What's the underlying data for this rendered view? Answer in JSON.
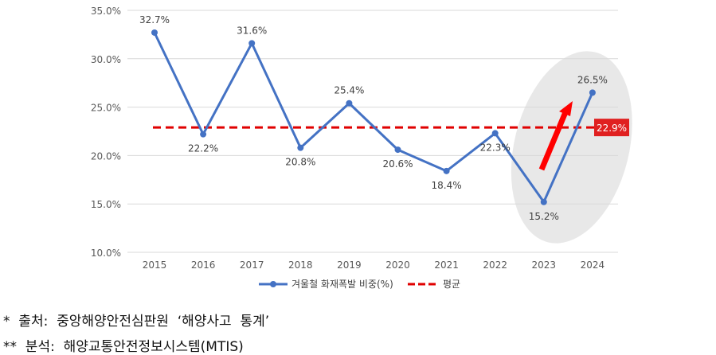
{
  "chart_data": {
    "type": "line",
    "categories": [
      "2015",
      "2016",
      "2017",
      "2018",
      "2019",
      "2020",
      "2021",
      "2022",
      "2023",
      "2024"
    ],
    "series": [
      {
        "name": "겨울철 화재폭발 비중(%)",
        "values": [
          32.7,
          22.2,
          31.6,
          20.8,
          25.4,
          20.6,
          18.4,
          22.3,
          15.2,
          26.5
        ],
        "labels": [
          "32.7%",
          "22.2%",
          "31.6%",
          "20.8%",
          "25.4%",
          "20.6%",
          "18.4%",
          "22.3%",
          "15.2%",
          "26.5%"
        ],
        "color": "#4472C4"
      },
      {
        "name": "평균",
        "value": 22.9,
        "label": "22.9%",
        "color": "#E00000",
        "style": "dashed"
      }
    ],
    "ylim": [
      10,
      35
    ],
    "yticks": [
      "10.0%",
      "15.0%",
      "20.0%",
      "25.0%",
      "30.0%",
      "35.0%"
    ],
    "grid": true,
    "legend": "bottom",
    "annotation": {
      "highlight": [
        "2023",
        "2024"
      ],
      "arrow": "up",
      "arrow_color": "#FF0000"
    }
  },
  "footnotes": {
    "source": "*  출처:  중앙해양안전심판원  ‘해양사고  통계’",
    "analysis": "**  분석:  해양교통안전정보시스템(MTIS)"
  }
}
